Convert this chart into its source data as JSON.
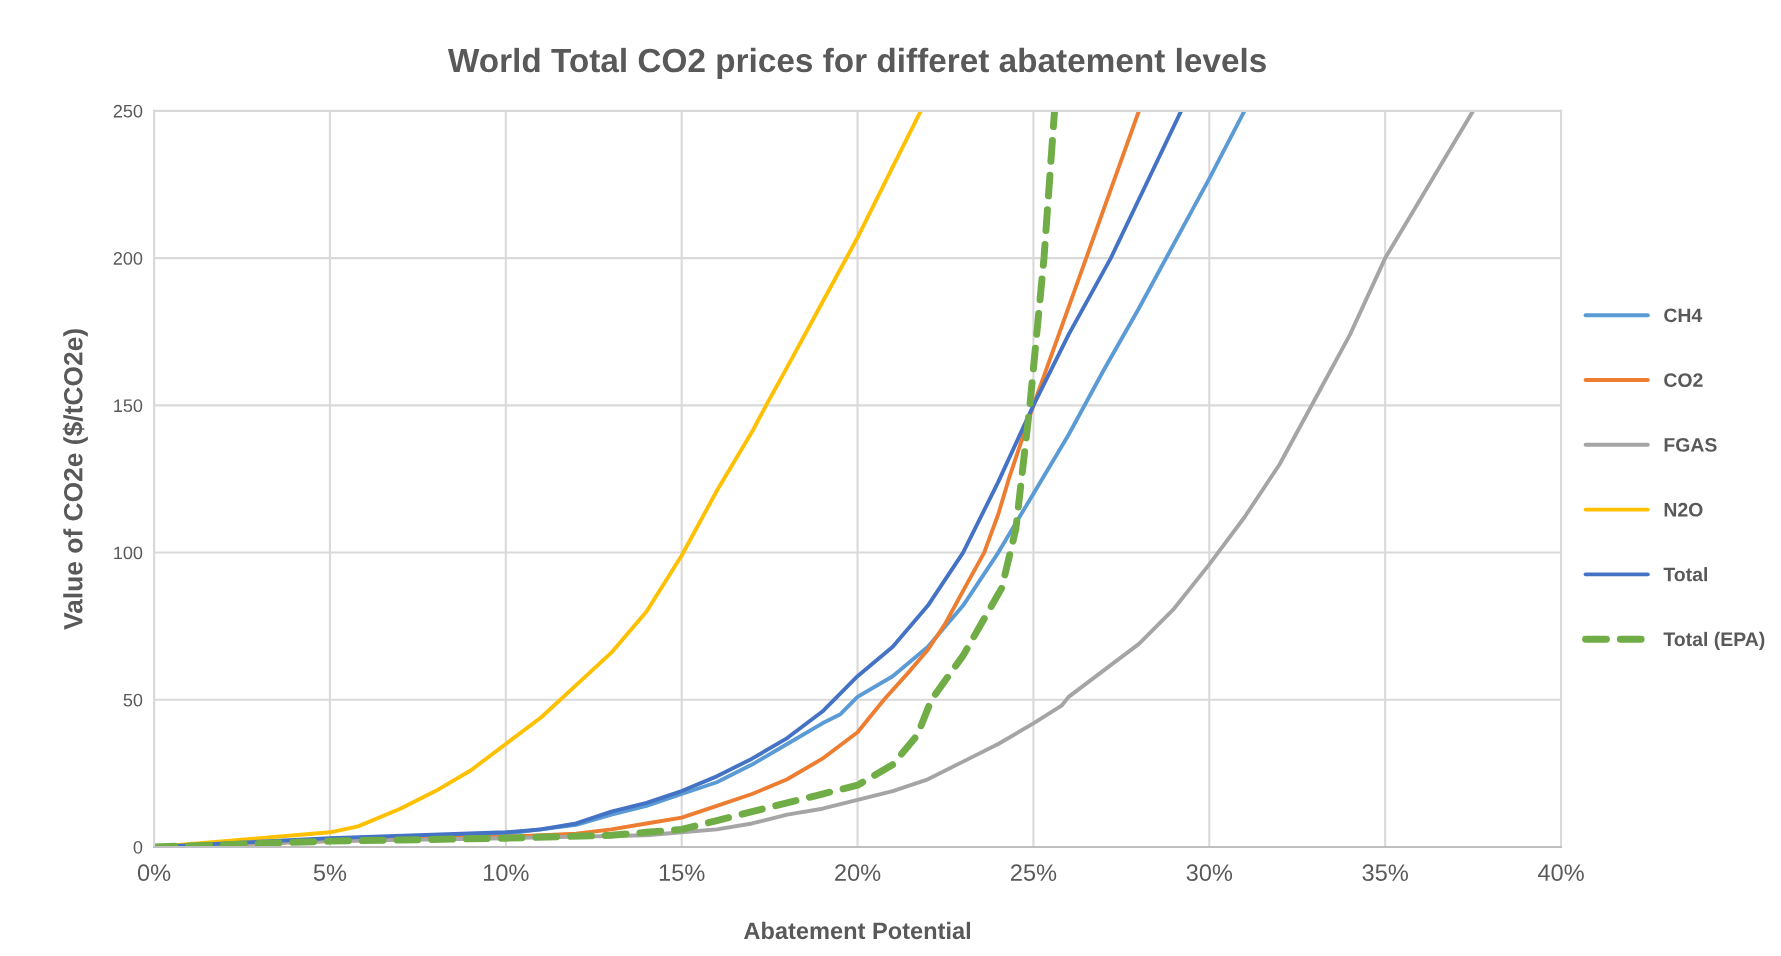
{
  "chart_data": {
    "type": "line",
    "title": "World Total CO2 prices for differet abatement levels",
    "xlabel": "Abatement Potential",
    "ylabel": "Value of CO2e ($/tCO2e)",
    "xlim": [
      0,
      40
    ],
    "xticks": [
      {
        "value": 0,
        "label": "0%"
      },
      {
        "value": 5,
        "label": "5%"
      },
      {
        "value": 10,
        "label": "10%"
      },
      {
        "value": 15,
        "label": "15%"
      },
      {
        "value": 20,
        "label": "20%"
      },
      {
        "value": 25,
        "label": "25%"
      },
      {
        "value": 30,
        "label": "30%"
      },
      {
        "value": 35,
        "label": "35%"
      },
      {
        "value": 40,
        "label": "40%"
      }
    ],
    "ylim": [
      0,
      250
    ],
    "yticks": [
      0,
      50,
      100,
      150,
      200,
      250
    ],
    "grid": true,
    "legend": "right",
    "line_style": "solid",
    "series": [
      {
        "name": "CH4",
        "color": "#5b9bd5",
        "x": [
          0,
          5,
          10,
          12,
          13,
          14,
          15,
          16,
          17,
          18,
          19,
          19.5,
          20,
          21,
          22,
          23,
          24,
          25,
          26,
          27,
          28,
          29,
          30,
          31
        ],
        "values": [
          0,
          2.5,
          4.5,
          7.5,
          11,
          14,
          18,
          22,
          28,
          35,
          42,
          45,
          51,
          58,
          68,
          82,
          100,
          120,
          140,
          162,
          183,
          205,
          227,
          250
        ]
      },
      {
        "name": "CO2",
        "color": "#ed7d31",
        "x": [
          0,
          5,
          10,
          12,
          13,
          14,
          15,
          16,
          17,
          18,
          19,
          20,
          20.75,
          21.5,
          22,
          22.5,
          23,
          23.6,
          24,
          24.3,
          25,
          26.5,
          28
        ],
        "values": [
          0,
          2,
          3.5,
          4.5,
          6,
          8,
          10,
          14,
          18,
          23,
          30,
          39,
          50,
          60,
          67,
          76,
          87,
          100,
          113,
          125,
          150,
          200,
          250
        ]
      },
      {
        "name": "FGAS",
        "color": "#a5a5a5",
        "x": [
          0,
          5,
          10,
          14,
          15,
          16,
          17,
          18,
          19,
          20,
          21,
          22,
          23,
          24,
          25,
          25.8,
          26,
          27,
          28,
          29,
          30,
          31,
          32,
          33,
          34,
          35,
          36,
          37,
          37.5
        ],
        "values": [
          0,
          2,
          3,
          4,
          5,
          6,
          8,
          11,
          13,
          16,
          19,
          23,
          29,
          35,
          42,
          48,
          51,
          60,
          69,
          81,
          96,
          112,
          130,
          152,
          174,
          200,
          220,
          240,
          250
        ]
      },
      {
        "name": "N2O",
        "color": "#ffc000",
        "x": [
          0,
          2,
          4,
          5,
          5.8,
          7,
          8,
          9,
          10,
          11,
          12,
          13,
          14,
          15,
          16,
          17,
          17.4,
          18,
          19,
          20,
          21,
          21.8
        ],
        "values": [
          0,
          2,
          4,
          5,
          7,
          13,
          19,
          26,
          35,
          44,
          55,
          66,
          80,
          99,
          121,
          141,
          150,
          163,
          185,
          207,
          231,
          250
        ]
      },
      {
        "name": "Total",
        "color": "#4472c4",
        "x": [
          0,
          5,
          10,
          11,
          12,
          13,
          14,
          15,
          16,
          17,
          18,
          19,
          19.5,
          20,
          21,
          22,
          23,
          24,
          25,
          26,
          27.2,
          28,
          29.2
        ],
        "values": [
          0,
          3,
          5,
          6,
          8,
          12,
          15,
          19,
          24,
          30,
          37,
          46,
          52,
          58,
          68,
          82,
          100,
          124,
          150,
          174,
          200,
          220,
          250
        ]
      },
      {
        "name": "Total (EPA)",
        "color": "#70ad47",
        "line_style": "dashed",
        "x": [
          0,
          5,
          10,
          13,
          14,
          15,
          16,
          17,
          18,
          19,
          20,
          21,
          21.7,
          22.1,
          23,
          24.1,
          24.5,
          24.9,
          25.3,
          25.6
        ],
        "values": [
          0,
          2,
          3,
          4,
          5,
          6,
          9,
          12,
          15,
          18,
          21,
          28,
          38,
          50,
          65,
          88,
          108,
          150,
          200,
          250
        ]
      }
    ]
  }
}
